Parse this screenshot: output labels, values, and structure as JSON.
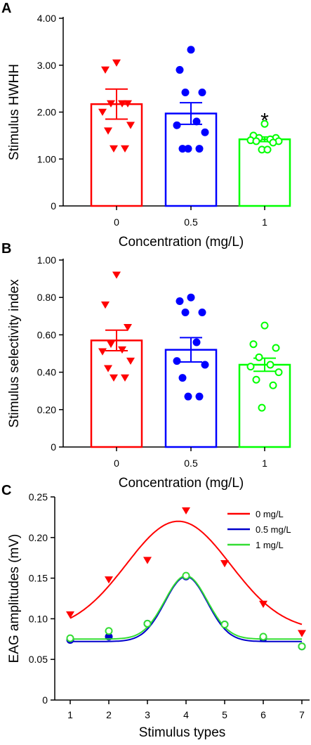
{
  "figure": {
    "panels": [
      {
        "letter": "A"
      },
      {
        "letter": "B"
      },
      {
        "letter": "C"
      }
    ]
  },
  "chart_data": [
    {
      "panel": "A",
      "type": "bar",
      "categories": [
        "0",
        "0.5",
        "1"
      ],
      "xlabel": "Concentration (mg/L)",
      "ylabel": "Stimulus HWHH",
      "ylim": [
        0,
        4
      ],
      "yticks": [
        0,
        1,
        2,
        3,
        4
      ],
      "ytick_labels": [
        "0",
        "1.00",
        "2.00",
        "3.00",
        "4.00"
      ],
      "bars": [
        {
          "category": "0",
          "mean": 2.17,
          "sem": 0.32,
          "color": "#ff0000",
          "marker": "triangle-down-filled",
          "points": [
            3.05,
            2.9,
            2.18,
            2.18,
            2.18,
            2.0,
            1.72,
            1.6,
            1.22,
            1.22
          ]
        },
        {
          "category": "0.5",
          "mean": 1.97,
          "sem": 0.23,
          "color": "#0000ff",
          "marker": "circle-filled",
          "points": [
            3.33,
            2.9,
            2.42,
            2.42,
            1.8,
            1.72,
            1.57,
            1.22,
            1.22,
            1.22
          ]
        },
        {
          "category": "1",
          "mean": 1.42,
          "sem": 0.05,
          "color": "#00ff00",
          "marker": "circle-open",
          "points": [
            1.75,
            1.5,
            1.45,
            1.45,
            1.42,
            1.4,
            1.38,
            1.38,
            1.35,
            1.2,
            1.2
          ]
        }
      ],
      "annotation": "*",
      "annotation_category": "1",
      "annotation_value": 1.85
    },
    {
      "panel": "B",
      "type": "bar",
      "categories": [
        "0",
        "0.5",
        "1"
      ],
      "xlabel": "Concentration (mg/L)",
      "ylabel": "Stimulus selectivity index",
      "ylim": [
        0,
        1
      ],
      "yticks": [
        0,
        0.2,
        0.4,
        0.6,
        0.8,
        1.0
      ],
      "ytick_labels": [
        "0",
        "0.20",
        "0.40",
        "0.60",
        "0.80",
        "1.00"
      ],
      "bars": [
        {
          "category": "0",
          "mean": 0.57,
          "sem": 0.055,
          "color": "#ff0000",
          "marker": "triangle-down-filled",
          "points": [
            0.92,
            0.76,
            0.64,
            0.55,
            0.52,
            0.51,
            0.46,
            0.42,
            0.37,
            0.37
          ]
        },
        {
          "category": "0.5",
          "mean": 0.52,
          "sem": 0.065,
          "color": "#0000ff",
          "marker": "circle-filled",
          "points": [
            0.8,
            0.78,
            0.72,
            0.72,
            0.56,
            0.46,
            0.44,
            0.37,
            0.27,
            0.27
          ]
        },
        {
          "category": "1",
          "mean": 0.44,
          "sem": 0.035,
          "color": "#00ff00",
          "marker": "circle-open",
          "points": [
            0.65,
            0.55,
            0.53,
            0.48,
            0.44,
            0.43,
            0.4,
            0.36,
            0.33,
            0.21
          ]
        }
      ]
    },
    {
      "panel": "C",
      "type": "line",
      "xlabel": "Stimulus types",
      "ylabel": "EAG amplitudes (mV)",
      "xlim": [
        0.6,
        7.2
      ],
      "xticks": [
        1,
        2,
        3,
        4,
        5,
        6,
        7
      ],
      "ylim": [
        0,
        0.25
      ],
      "yticks": [
        0,
        0.05,
        0.1,
        0.15,
        0.2,
        0.25
      ],
      "ytick_labels": [
        "0",
        "0.05",
        "0.10",
        "0.15",
        "0.20",
        "0.25"
      ],
      "legend_position": "top-right",
      "series": [
        {
          "name": "0    mg/L",
          "color": "#ff0000",
          "marker": "triangle-down-filled",
          "x": [
            1,
            2,
            3,
            4,
            5,
            6,
            7
          ],
          "values": [
            0.105,
            0.148,
            0.172,
            0.233,
            0.168,
            0.118,
            0.082
          ],
          "fit": {
            "y0": 0.085,
            "A": 0.135,
            "xc": 3.8,
            "w": 1.35
          }
        },
        {
          "name": "0.5 mg/L",
          "color": "#0000cc",
          "marker": "circle-filled",
          "x": [
            1,
            2,
            3,
            4,
            5,
            6,
            7
          ],
          "values": [
            0.074,
            0.078,
            0.094,
            0.152,
            0.093,
            0.076,
            0.066
          ],
          "fit": {
            "y0": 0.072,
            "A": 0.08,
            "xc": 4.0,
            "w": 0.55
          }
        },
        {
          "name": "1    mg/L",
          "color": "#33dd33",
          "marker": "circle-open",
          "x": [
            1,
            2,
            3,
            4,
            5,
            6,
            7
          ],
          "values": [
            0.076,
            0.085,
            0.094,
            0.153,
            0.093,
            0.078,
            0.066
          ],
          "fit": {
            "y0": 0.075,
            "A": 0.078,
            "xc": 4.0,
            "w": 0.55
          }
        }
      ]
    }
  ]
}
